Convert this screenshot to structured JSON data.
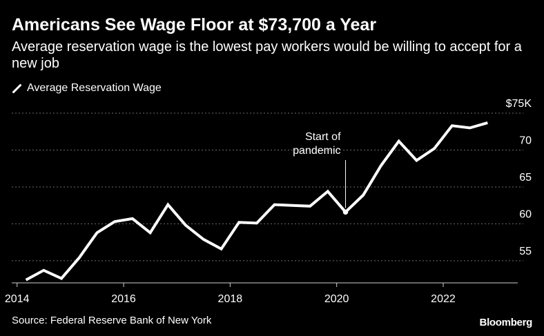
{
  "title": "Americans See Wage Floor at $73,700 a Year",
  "subtitle": "Average reservation wage is the lowest pay workers would be willing to accept for a new job",
  "source": "Source: Federal Reserve Bank of New York",
  "brand": "Bloomberg",
  "colors": {
    "background": "#000000",
    "line": "#ffffff",
    "grid": "#6e6e6e",
    "text": "#ffffff"
  },
  "chart_data": {
    "type": "line",
    "title": "Americans See Wage Floor at $73,700 a Year",
    "subtitle": "Average reservation wage is the lowest pay workers would be willing to accept for a new job",
    "xlabel": "",
    "ylabel": "",
    "x_ticks": [
      "2014",
      "2016",
      "2018",
      "2020",
      "2022"
    ],
    "y_ticks": [
      "55",
      "60",
      "65",
      "70",
      "$75K"
    ],
    "y_tick_values": [
      55,
      60,
      65,
      70,
      75
    ],
    "ylim": [
      52,
      75
    ],
    "xlim": [
      2013.9,
      2023.4
    ],
    "grid": true,
    "legend_position": "top-left",
    "series": [
      {
        "name": "Average Reservation Wage",
        "x": [
          "2014-03",
          "2014-07",
          "2014-11",
          "2015-03",
          "2015-07",
          "2015-11",
          "2016-03",
          "2016-07",
          "2016-11",
          "2017-03",
          "2017-07",
          "2017-11",
          "2018-03",
          "2018-07",
          "2018-11",
          "2019-03",
          "2019-07",
          "2019-11",
          "2020-03",
          "2020-07",
          "2020-11",
          "2021-03",
          "2021-07",
          "2021-11",
          "2022-03",
          "2022-07",
          "2022-11"
        ],
        "values": [
          52.4,
          53.7,
          52.6,
          55.4,
          58.8,
          60.3,
          60.7,
          58.8,
          62.6,
          59.8,
          57.9,
          56.6,
          60.2,
          60.1,
          62.6,
          62.5,
          62.4,
          64.4,
          61.6,
          63.9,
          67.9,
          71.2,
          68.6,
          70.2,
          73.3,
          73.0,
          73.7
        ]
      }
    ],
    "annotations": [
      {
        "text_lines": [
          "Start of",
          "pandemic"
        ],
        "x": "2020-03",
        "y": 61.6
      }
    ]
  }
}
